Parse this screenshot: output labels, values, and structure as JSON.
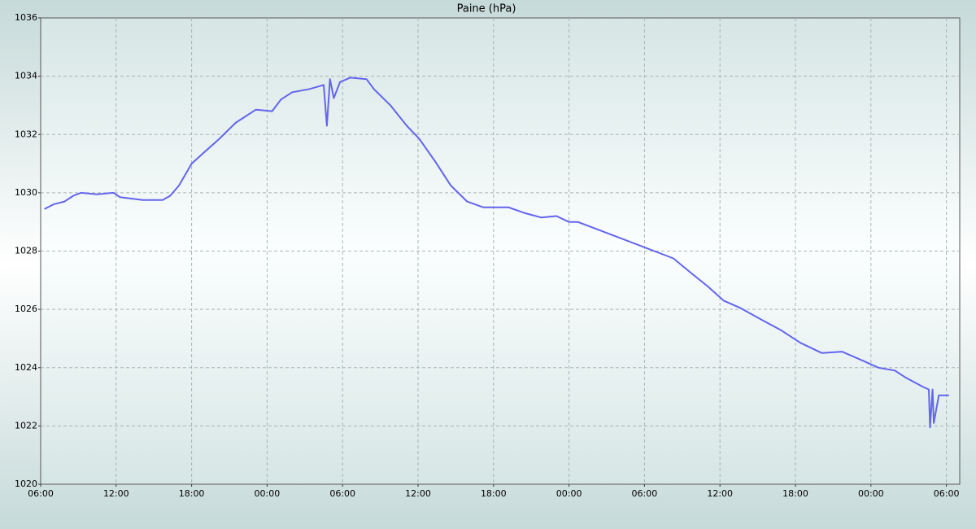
{
  "chart_data": {
    "type": "line",
    "title": "Paine (hPa)",
    "x": [
      6.3,
      7.0,
      7.9,
      8.6,
      9.2,
      10.5,
      11.8,
      12.3,
      14.1,
      15.7,
      16.3,
      17.0,
      18.0,
      18.9,
      20.2,
      21.5,
      23.1,
      24.4,
      25.1,
      26.0,
      27.3,
      28.5,
      28.75,
      29.0,
      29.3,
      29.8,
      30.6,
      31.9,
      32.5,
      33.8,
      35.1,
      36.1,
      37.4,
      38.6,
      39.9,
      41.2,
      43.2,
      44.5,
      45.8,
      47.0,
      48.0,
      48.7,
      56.3,
      57.7,
      59.0,
      60.3,
      61.6,
      63.5,
      64.8,
      66.4,
      68.1,
      69.7,
      71.3,
      72.6,
      73.9,
      74.8,
      76.1,
      76.6,
      76.7,
      76.9,
      77.0,
      77.4,
      78.2
    ],
    "series": [
      {
        "name": "Paine",
        "color": "#6464ee",
        "values": [
          1029.44,
          1029.6,
          1029.7,
          1029.9,
          1030.0,
          1029.95,
          1030.0,
          1029.85,
          1029.75,
          1029.75,
          1029.9,
          1030.25,
          1031.0,
          1031.35,
          1031.85,
          1032.4,
          1032.85,
          1032.8,
          1033.2,
          1033.45,
          1033.55,
          1033.7,
          1032.3,
          1033.9,
          1033.25,
          1033.8,
          1033.95,
          1033.9,
          1033.55,
          1033.0,
          1032.3,
          1031.85,
          1031.05,
          1030.25,
          1029.7,
          1029.5,
          1029.5,
          1029.3,
          1029.15,
          1029.2,
          1029.0,
          1029.0,
          1027.75,
          1027.25,
          1026.8,
          1026.3,
          1026.05,
          1025.6,
          1025.3,
          1024.85,
          1024.5,
          1024.55,
          1024.25,
          1024.0,
          1023.9,
          1023.65,
          1023.35,
          1023.25,
          1021.95,
          1023.25,
          1022.1,
          1023.05,
          1023.05
        ]
      }
    ],
    "xlim": [
      6,
      79.06
    ],
    "xticks": [
      {
        "value": 6,
        "label": "06:00"
      },
      {
        "value": 12,
        "label": "12:00"
      },
      {
        "value": 18,
        "label": "18:00"
      },
      {
        "value": 24,
        "label": "00:00"
      },
      {
        "value": 30,
        "label": "06:00"
      },
      {
        "value": 36,
        "label": "12:00"
      },
      {
        "value": 42,
        "label": "18:00"
      },
      {
        "value": 48,
        "label": "00:00"
      },
      {
        "value": 54,
        "label": "06:00"
      },
      {
        "value": 60,
        "label": "12:00"
      },
      {
        "value": 66,
        "label": "18:00"
      },
      {
        "value": 72,
        "label": "00:00"
      },
      {
        "value": 78,
        "label": "06:00"
      }
    ],
    "ylim": [
      1020,
      1036
    ],
    "yticks": [
      1020,
      1022,
      1024,
      1026,
      1028,
      1030,
      1032,
      1034,
      1036
    ],
    "grid": true
  }
}
